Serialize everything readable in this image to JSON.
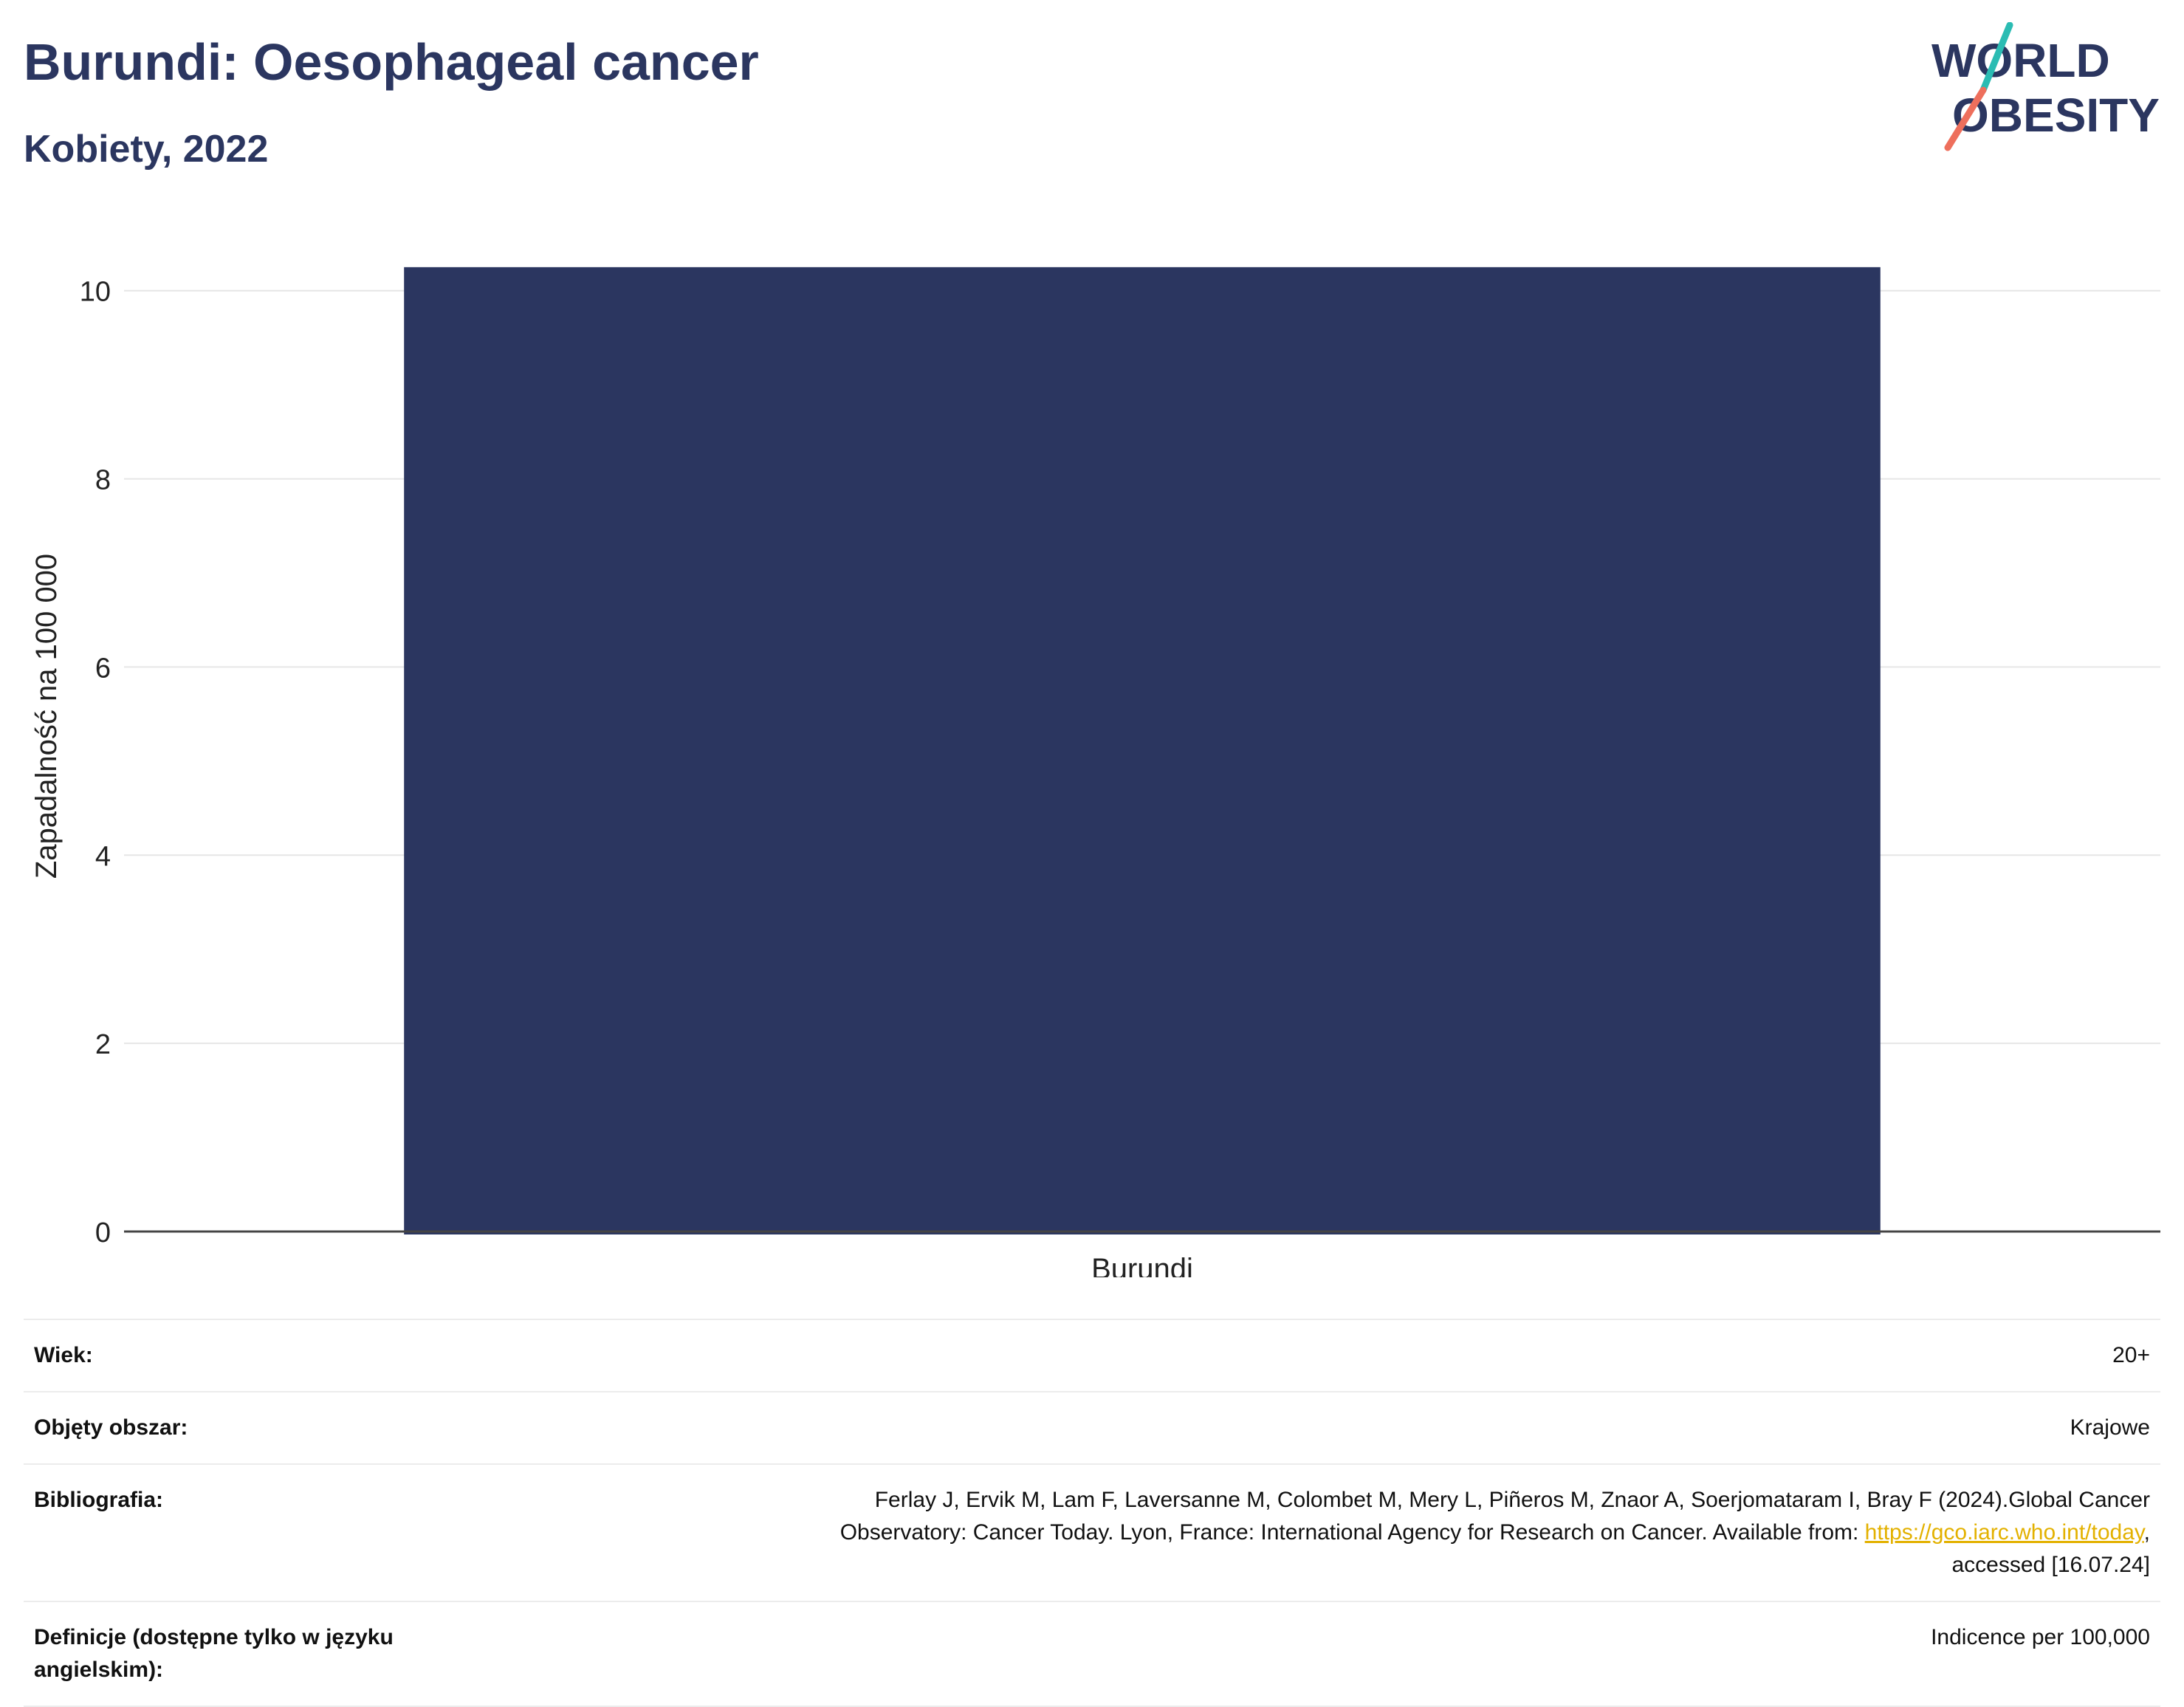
{
  "header": {
    "title": "Burundi: Oesophageal cancer",
    "subtitle": "Kobiety, 2022"
  },
  "logo": {
    "line1": "WORLD",
    "line2": "OBESITY",
    "colors": {
      "text": "#2b3660",
      "slash_top": "#2bbcb3",
      "slash_bottom": "#ee6f5c"
    }
  },
  "chart_data": {
    "type": "bar",
    "categories": [
      "Burundi"
    ],
    "values": [
      10.25
    ],
    "title": "",
    "xlabel": "",
    "ylabel": "Zapadalność na 100 000",
    "ylim": [
      0,
      10.5
    ],
    "yticks": [
      0,
      2,
      4,
      6,
      8,
      10
    ],
    "grid": true,
    "bar_color": "#2b3660"
  },
  "meta": {
    "rows": [
      {
        "label": "Wiek:",
        "value": "20+"
      },
      {
        "label": "Objęty obszar:",
        "value": "Krajowe"
      },
      {
        "label": "Bibliografia:",
        "value_line1": "Ferlay J, Ervik M, Lam F, Laversanne M, Colombet M, Mery L, Piñeros M, Znaor A, Soerjomataram I, Bray F (2024).Global Cancer",
        "value_line2": "Observatory: Cancer Today. Lyon, France: International Agency for Research on Cancer. Available from: ",
        "link": "https://gco.iarc.who.int/today",
        "value_line2_end": ",",
        "value_line3": "accessed [16.07.24]"
      },
      {
        "label": "Definicje (dostępne tylko w języku angielskim):",
        "value": "Indicence per 100,000"
      }
    ]
  }
}
